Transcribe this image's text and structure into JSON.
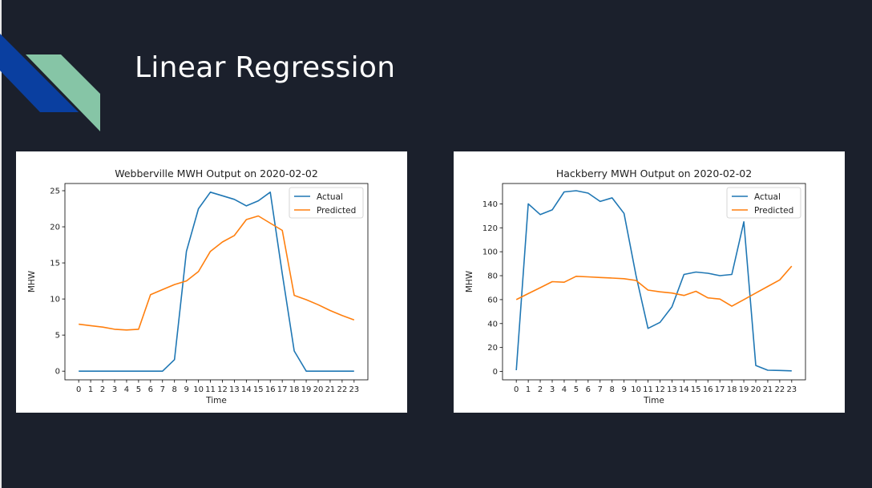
{
  "slide": {
    "title": "Linear Regression",
    "colors": {
      "background": "#1b202c",
      "accent_blue": "#0a3fa0",
      "accent_green": "#86c5a6"
    }
  },
  "chart_data": [
    {
      "type": "line",
      "title": "Webberville MWH Output on 2020-02-02",
      "xlabel": "Time",
      "ylabel": "MHW",
      "x": [
        0,
        1,
        2,
        3,
        4,
        5,
        6,
        7,
        8,
        9,
        10,
        11,
        12,
        13,
        14,
        15,
        16,
        17,
        18,
        19,
        20,
        21,
        22,
        23
      ],
      "xlim": [
        -1.15,
        24.15
      ],
      "ylim": [
        -1.2,
        26
      ],
      "yticks": [
        0,
        5,
        10,
        15,
        20,
        25
      ],
      "legend": "top-right",
      "grid": false,
      "series": [
        {
          "name": "Actual",
          "color": "#1f77b4",
          "values": [
            0,
            0,
            0,
            0,
            0,
            0,
            0,
            0,
            1.6,
            16.6,
            22.5,
            24.8,
            24.3,
            23.8,
            22.9,
            23.6,
            24.8,
            13.5,
            2.8,
            0,
            0,
            0,
            0,
            0
          ]
        },
        {
          "name": "Predicted",
          "color": "#ff7f0e",
          "values": [
            6.5,
            6.3,
            6.1,
            5.8,
            5.7,
            5.8,
            10.6,
            11.3,
            12.0,
            12.5,
            13.8,
            16.6,
            17.9,
            18.8,
            21.0,
            21.5,
            20.5,
            19.5,
            10.5,
            9.9,
            9.2,
            8.4,
            7.7,
            7.1
          ]
        }
      ]
    },
    {
      "type": "line",
      "title": "Hackberry MWH Output on 2020-02-02",
      "xlabel": "Time",
      "ylabel": "MHW",
      "x": [
        0,
        1,
        2,
        3,
        4,
        5,
        6,
        7,
        8,
        9,
        10,
        11,
        12,
        13,
        14,
        15,
        16,
        17,
        18,
        19,
        20,
        21,
        22,
        23
      ],
      "xlim": [
        -1.15,
        24.15
      ],
      "ylim": [
        -7,
        157
      ],
      "yticks": [
        0,
        20,
        40,
        60,
        80,
        100,
        120,
        140
      ],
      "legend": "top-right",
      "grid": false,
      "series": [
        {
          "name": "Actual",
          "color": "#1f77b4",
          "values": [
            1,
            140,
            131,
            135,
            150,
            151,
            149,
            142,
            145,
            132,
            80,
            36,
            41,
            54,
            81,
            83,
            82,
            80,
            81,
            125,
            5,
            1,
            0.8,
            0.5
          ]
        },
        {
          "name": "Predicted",
          "color": "#ff7f0e",
          "values": [
            60,
            65,
            70,
            75,
            74.5,
            79.5,
            79,
            78.5,
            78,
            77.5,
            76,
            68,
            66.5,
            65.5,
            63.5,
            67,
            61.5,
            60.5,
            54.5,
            60,
            65.5,
            71,
            76.5,
            88
          ]
        }
      ]
    }
  ]
}
